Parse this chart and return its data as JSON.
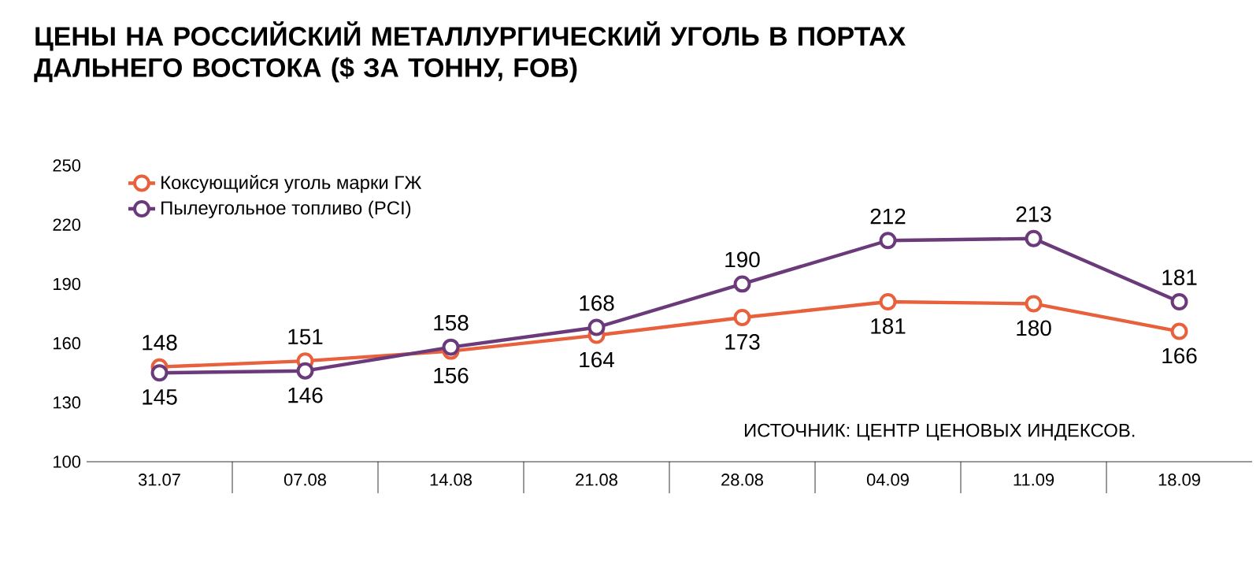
{
  "chart_data": {
    "type": "line",
    "title": "ЦЕНЫ НА РОССИЙСКИЙ МЕТАЛЛУРГИЧЕСКИЙ УГОЛЬ В ПОРТАХ ДАЛЬНЕГО ВОСТОКА ($ ЗА ТОННУ, FOB)",
    "categories": [
      "31.07",
      "07.08",
      "14.08",
      "21.08",
      "28.08",
      "04.09",
      "11.09",
      "18.09"
    ],
    "series": [
      {
        "name": "Коксующийся уголь марки ГЖ",
        "color": "#e8603c",
        "values": [
          148,
          151,
          156,
          164,
          173,
          181,
          180,
          166
        ]
      },
      {
        "name": "Пылеугольное топливо (PCI)",
        "color": "#6b3a7a",
        "values": [
          145,
          146,
          158,
          168,
          190,
          212,
          213,
          181
        ]
      }
    ],
    "ylim": [
      100,
      250
    ],
    "yticks": [
      100,
      130,
      160,
      190,
      220,
      250
    ],
    "data_labels": true,
    "legend": "top left",
    "marker": "circle",
    "line_style": "solid",
    "annotations": [
      "ИСТОЧНИК: ЦЕНТР ЦЕНОВЫХ ИНДЕКСОВ."
    ]
  }
}
